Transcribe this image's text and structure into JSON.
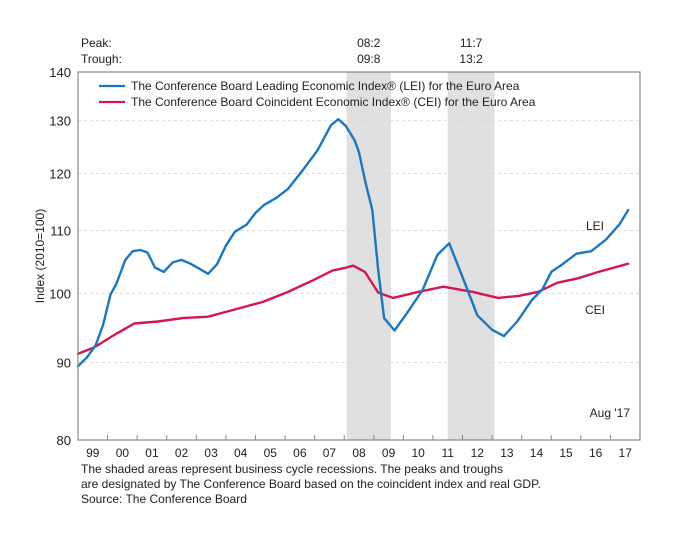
{
  "chart_data": {
    "type": "line",
    "title": "",
    "ylabel": "Index (2010=100)",
    "xlabel": "",
    "yscale": "log",
    "ylim": [
      80,
      140
    ],
    "xlim": [
      1999.0,
      2018.0
    ],
    "yticks": [
      80,
      90,
      100,
      110,
      120,
      130,
      140
    ],
    "ytick_labels": [
      "80",
      "90",
      "100",
      "110",
      "120",
      "130",
      "140"
    ],
    "grid": "horizontal-dashed",
    "xtick_labels": [
      "99",
      "00",
      "01",
      "02",
      "03",
      "04",
      "05",
      "06",
      "07",
      "08",
      "09",
      "10",
      "11",
      "12",
      "13",
      "14",
      "15",
      "16",
      "17"
    ],
    "legend": {
      "placement": "top-left",
      "entries": [
        {
          "name": "The Conference Board Leading Economic Index® (LEI) for the Euro Area",
          "color": "#1a78c2"
        },
        {
          "name": "The Conference Board Coincident Economic Index® (CEI) for the Euro Area",
          "color": "#d6174e"
        }
      ]
    },
    "recessions": [
      {
        "peak": "08:2",
        "trough": "09:8",
        "start": 2008.08,
        "end": 2009.58
      },
      {
        "peak": "11:7",
        "trough": "13:2",
        "start": 2011.5,
        "end": 2013.08
      }
    ],
    "recession_header": {
      "peak_label": "Peak:",
      "trough_label": "Trough:"
    },
    "annotations": {
      "lei_label": "LEI",
      "cei_label": "CEI",
      "latest": "Aug '17"
    },
    "series": [
      {
        "name": "LEI",
        "color": "#1a78c2",
        "points": [
          [
            1999.0,
            89.5
          ],
          [
            1999.3,
            90.7
          ],
          [
            1999.6,
            92.4
          ],
          [
            1999.85,
            95.3
          ],
          [
            2000.1,
            99.8
          ],
          [
            2000.3,
            101.5
          ],
          [
            2000.6,
            105.2
          ],
          [
            2000.85,
            106.6
          ],
          [
            2001.1,
            106.8
          ],
          [
            2001.35,
            106.4
          ],
          [
            2001.6,
            104.0
          ],
          [
            2001.9,
            103.3
          ],
          [
            2002.2,
            104.8
          ],
          [
            2002.5,
            105.2
          ],
          [
            2002.8,
            104.6
          ],
          [
            2003.1,
            103.8
          ],
          [
            2003.4,
            103.0
          ],
          [
            2003.7,
            104.5
          ],
          [
            2004.0,
            107.5
          ],
          [
            2004.3,
            109.8
          ],
          [
            2004.7,
            111.0
          ],
          [
            2005.0,
            113.0
          ],
          [
            2005.3,
            114.4
          ],
          [
            2005.7,
            115.6
          ],
          [
            2006.1,
            117.2
          ],
          [
            2006.6,
            120.6
          ],
          [
            2007.1,
            124.3
          ],
          [
            2007.55,
            129.1
          ],
          [
            2007.8,
            130.3
          ],
          [
            2008.05,
            129.0
          ],
          [
            2008.35,
            126.2
          ],
          [
            2008.5,
            123.9
          ],
          [
            2008.7,
            118.8
          ],
          [
            2008.95,
            113.5
          ],
          [
            2009.15,
            103.6
          ],
          [
            2009.35,
            96.3
          ],
          [
            2009.7,
            94.5
          ],
          [
            2010.15,
            97.2
          ],
          [
            2010.65,
            100.5
          ],
          [
            2011.15,
            106.0
          ],
          [
            2011.55,
            107.9
          ],
          [
            2012.0,
            102.5
          ],
          [
            2012.5,
            96.7
          ],
          [
            2013.0,
            94.6
          ],
          [
            2013.4,
            93.7
          ],
          [
            2013.85,
            95.8
          ],
          [
            2014.35,
            99.0
          ],
          [
            2014.7,
            100.6
          ],
          [
            2015.0,
            103.3
          ],
          [
            2015.35,
            104.4
          ],
          [
            2015.85,
            106.2
          ],
          [
            2016.35,
            106.6
          ],
          [
            2016.85,
            108.5
          ],
          [
            2017.3,
            111.0
          ],
          [
            2017.6,
            113.5
          ]
        ]
      },
      {
        "name": "CEI",
        "color": "#d6174e",
        "points": [
          [
            1999.0,
            91.2
          ],
          [
            1999.55,
            92.1
          ],
          [
            2000.2,
            93.8
          ],
          [
            2000.9,
            95.5
          ],
          [
            2001.7,
            95.8
          ],
          [
            2002.55,
            96.3
          ],
          [
            2003.4,
            96.5
          ],
          [
            2004.25,
            97.5
          ],
          [
            2005.25,
            98.7
          ],
          [
            2006.1,
            100.2
          ],
          [
            2006.95,
            102.0
          ],
          [
            2007.6,
            103.5
          ],
          [
            2008.0,
            103.9
          ],
          [
            2008.3,
            104.3
          ],
          [
            2008.7,
            103.3
          ],
          [
            2009.15,
            100.1
          ],
          [
            2009.65,
            99.3
          ],
          [
            2010.5,
            100.2
          ],
          [
            2011.35,
            101.0
          ],
          [
            2012.35,
            100.2
          ],
          [
            2013.2,
            99.3
          ],
          [
            2013.9,
            99.6
          ],
          [
            2014.55,
            100.2
          ],
          [
            2015.2,
            101.6
          ],
          [
            2015.9,
            102.3
          ],
          [
            2016.6,
            103.3
          ],
          [
            2017.6,
            104.6
          ]
        ]
      }
    ]
  },
  "footnote": {
    "lines": [
      "The shaded areas represent business cycle recessions. The peaks and troughs",
      "are designated by The Conference Board based on the coincident index and real GDP.",
      "Source: The Conference Board"
    ]
  }
}
